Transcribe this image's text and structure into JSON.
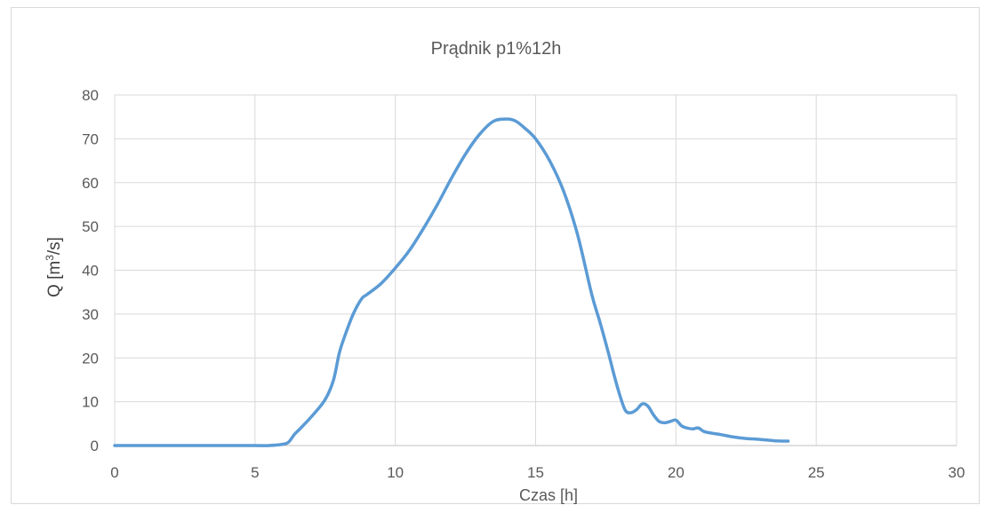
{
  "chart_data": {
    "type": "line",
    "title": "Prądnik p1%12h",
    "xlabel": "Czas [h]",
    "ylabel_main": "Q [m",
    "ylabel_sup": "3",
    "ylabel_end": "/s]",
    "xlim": [
      0,
      30
    ],
    "ylim": [
      0,
      80
    ],
    "xticks": [
      0,
      5,
      10,
      15,
      20,
      25,
      30
    ],
    "yticks": [
      0,
      10,
      20,
      30,
      40,
      50,
      60,
      70,
      80
    ],
    "grid": true,
    "line_color": "#5b9bd5",
    "series": [
      {
        "x": [
          0,
          1,
          2,
          3,
          4,
          5,
          5.5,
          6,
          6.2,
          6.4,
          6.6,
          7,
          7.5,
          7.8,
          8,
          8.2,
          8.5,
          8.8,
          9,
          9.5,
          10,
          10.5,
          11,
          11.5,
          12,
          12.5,
          13,
          13.5,
          14,
          14.3,
          14.6,
          15,
          15.5,
          16,
          16.5,
          17,
          17.3,
          17.6,
          17.8,
          18,
          18.2,
          18.4,
          18.6,
          18.8,
          19,
          19.2,
          19.4,
          19.6,
          19.8,
          20,
          20.2,
          20.4,
          20.6,
          20.8,
          21,
          21.3,
          21.6,
          22,
          22.5,
          23,
          23.5,
          24
        ],
        "y": [
          0,
          0,
          0,
          0,
          0,
          0,
          0,
          0.3,
          0.8,
          2.5,
          3.8,
          6.5,
          10.5,
          15,
          21,
          25,
          30,
          33.5,
          34.5,
          37,
          40.5,
          44.5,
          49.5,
          55,
          61,
          66.5,
          71,
          74,
          74.5,
          74,
          72.5,
          70,
          65,
          58,
          48,
          34.5,
          28,
          21,
          16,
          11.5,
          8,
          7.5,
          8.2,
          9.5,
          9,
          7,
          5.5,
          5.2,
          5.5,
          5.8,
          4.5,
          4,
          3.8,
          4,
          3.2,
          2.8,
          2.5,
          2,
          1.6,
          1.4,
          1.1,
          1
        ]
      }
    ]
  }
}
